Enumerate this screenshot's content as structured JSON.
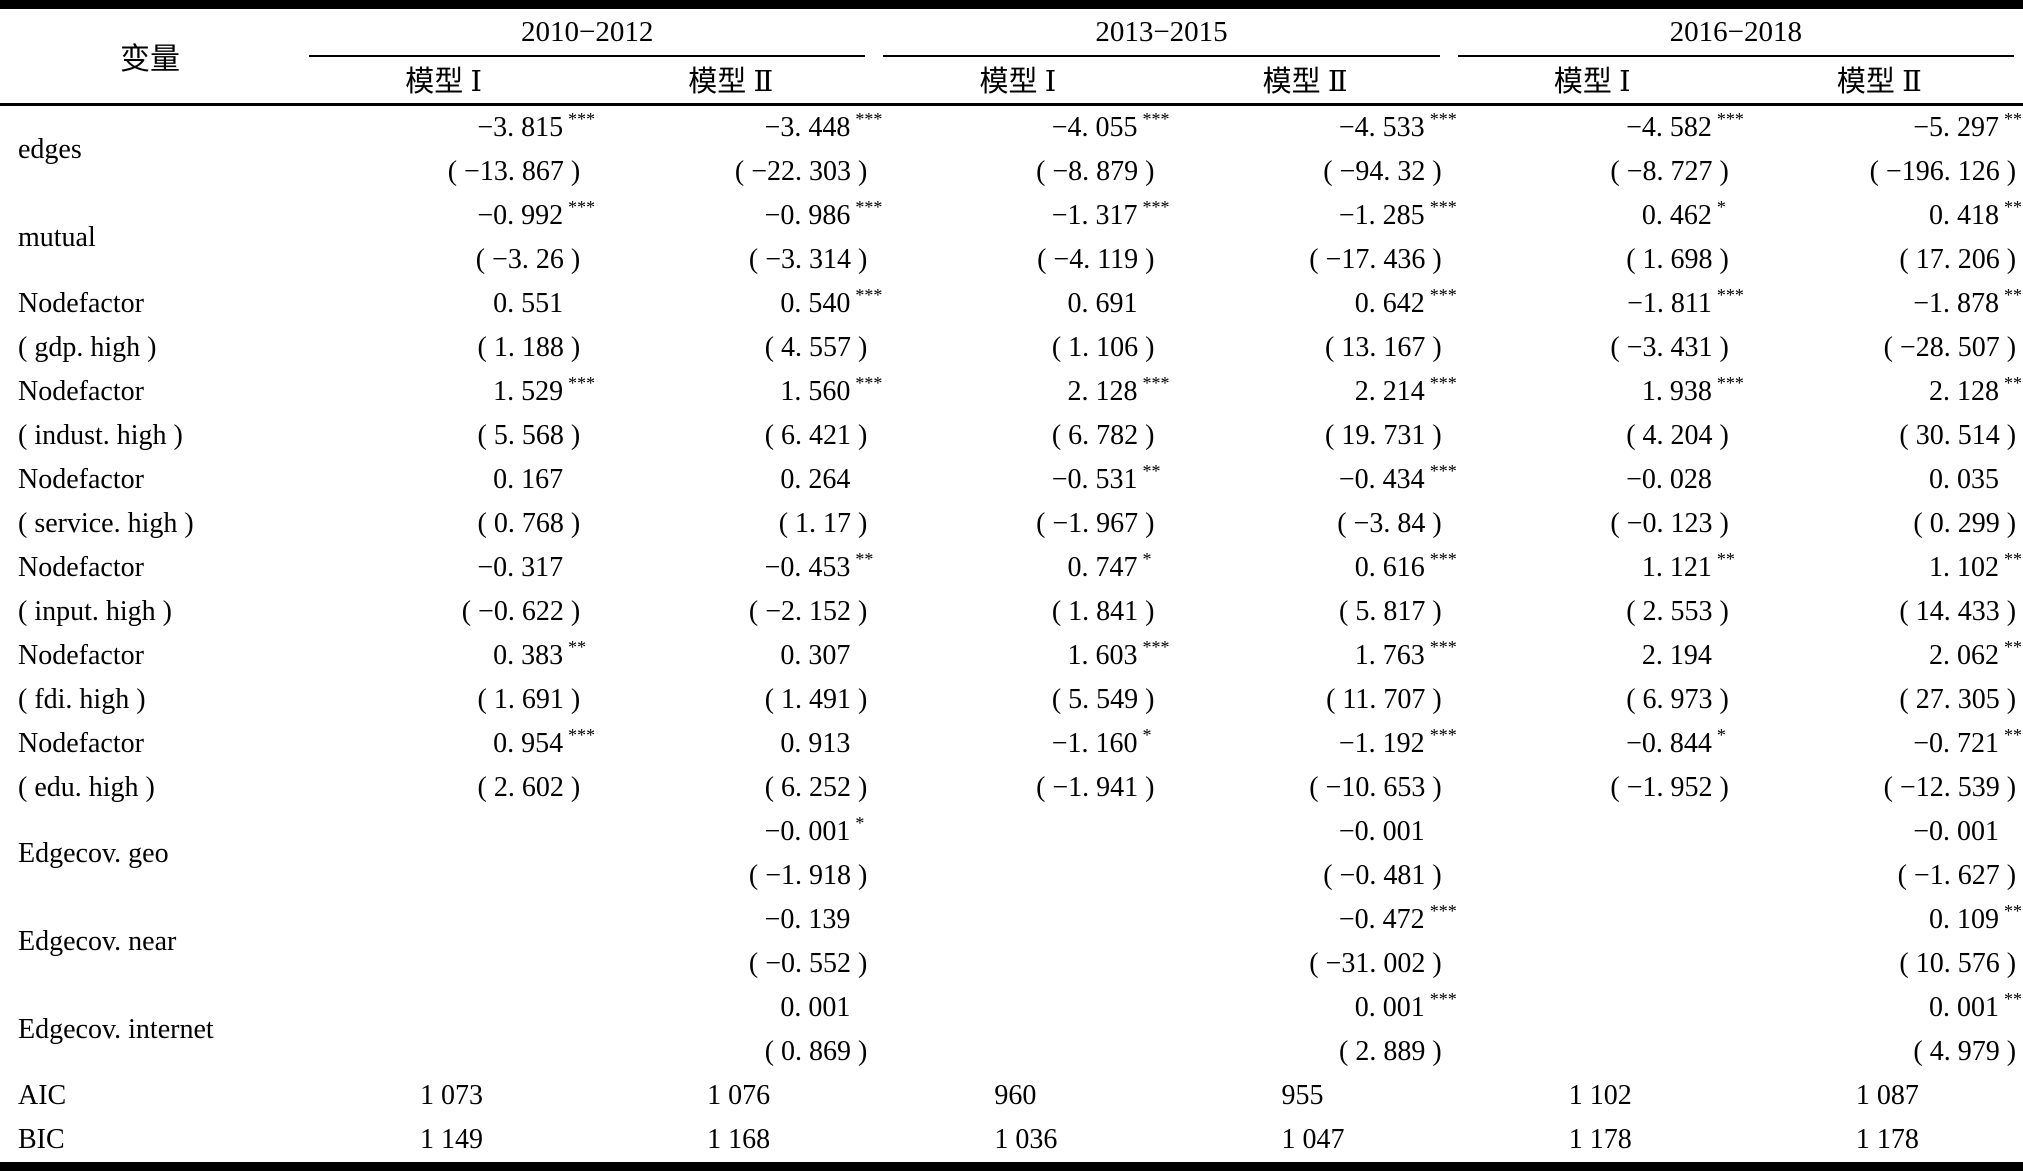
{
  "table": {
    "header": {
      "variable_label": "变量",
      "periods": [
        {
          "label": "2010−2012",
          "models": [
            "模型 Ⅰ",
            "模型 Ⅱ"
          ]
        },
        {
          "label": "2013−2015",
          "models": [
            "模型 Ⅰ",
            "模型 Ⅱ"
          ]
        },
        {
          "label": "2016−2018",
          "models": [
            "模型 Ⅰ",
            "模型 Ⅱ"
          ]
        }
      ]
    },
    "groups": [
      {
        "labels": [
          "edges"
        ],
        "cells": [
          {
            "v": "−3. 815",
            "s": "***",
            "t": "( −13. 867 )"
          },
          {
            "v": "−3. 448",
            "s": "***",
            "t": "( −22. 303 )"
          },
          {
            "v": "−4. 055",
            "s": "***",
            "t": "( −8. 879 )"
          },
          {
            "v": "−4. 533",
            "s": "***",
            "t": "( −94. 32 )"
          },
          {
            "v": "−4. 582",
            "s": "***",
            "t": "( −8. 727 )"
          },
          {
            "v": "−5. 297",
            "s": "***",
            "t": "( −196. 126 )"
          }
        ]
      },
      {
        "labels": [
          "mutual"
        ],
        "cells": [
          {
            "v": "−0. 992",
            "s": "***",
            "t": "( −3. 26 )"
          },
          {
            "v": "−0. 986",
            "s": "***",
            "t": "( −3. 314 )"
          },
          {
            "v": "−1. 317",
            "s": "***",
            "t": "( −4. 119 )"
          },
          {
            "v": "−1. 285",
            "s": "***",
            "t": "( −17. 436 )"
          },
          {
            "v": "0. 462",
            "s": "*",
            "t": "( 1. 698 )"
          },
          {
            "v": "0. 418",
            "s": "***",
            "t": "( 17. 206 )"
          }
        ]
      },
      {
        "labels": [
          "Nodefactor",
          "( gdp. high )"
        ],
        "cells": [
          {
            "v": "0. 551",
            "s": "",
            "t": "( 1. 188 )"
          },
          {
            "v": "0. 540",
            "s": "***",
            "t": "( 4. 557 )"
          },
          {
            "v": "0. 691",
            "s": "",
            "t": "( 1. 106 )"
          },
          {
            "v": "0. 642",
            "s": "***",
            "t": "( 13. 167 )"
          },
          {
            "v": "−1. 811",
            "s": "***",
            "t": "( −3. 431 )"
          },
          {
            "v": "−1. 878",
            "s": "***",
            "t": "( −28. 507 )"
          }
        ]
      },
      {
        "labels": [
          "Nodefactor",
          "( indust. high )"
        ],
        "cells": [
          {
            "v": "1. 529",
            "s": "***",
            "t": "( 5. 568 )"
          },
          {
            "v": "1. 560",
            "s": "***",
            "t": "( 6. 421 )"
          },
          {
            "v": "2. 128",
            "s": "***",
            "t": "( 6. 782 )"
          },
          {
            "v": "2. 214",
            "s": "***",
            "t": "( 19. 731 )"
          },
          {
            "v": "1. 938",
            "s": "***",
            "t": "( 4. 204 )"
          },
          {
            "v": "2. 128",
            "s": "***",
            "t": "( 30. 514 )"
          }
        ]
      },
      {
        "labels": [
          "Nodefactor",
          "( service. high )"
        ],
        "cells": [
          {
            "v": "0. 167",
            "s": "",
            "t": "( 0. 768 )"
          },
          {
            "v": "0. 264",
            "s": "",
            "t": "( 1. 17 )"
          },
          {
            "v": "−0. 531",
            "s": "**",
            "t": "( −1. 967 )"
          },
          {
            "v": "−0. 434",
            "s": "***",
            "t": "( −3. 84 )"
          },
          {
            "v": "−0. 028",
            "s": "",
            "t": "( −0. 123 )"
          },
          {
            "v": "0. 035",
            "s": "",
            "t": "( 0. 299 )"
          }
        ]
      },
      {
        "labels": [
          "Nodefactor",
          "( input. high )"
        ],
        "cells": [
          {
            "v": "−0. 317",
            "s": "",
            "t": "( −0. 622 )"
          },
          {
            "v": "−0. 453",
            "s": "**",
            "t": "( −2. 152 )"
          },
          {
            "v": "0. 747",
            "s": "*",
            "t": "( 1. 841 )"
          },
          {
            "v": "0. 616",
            "s": "***",
            "t": "( 5. 817 )"
          },
          {
            "v": "1. 121",
            "s": "**",
            "t": "( 2. 553 )"
          },
          {
            "v": "1. 102",
            "s": "***",
            "t": "( 14. 433 )"
          }
        ]
      },
      {
        "labels": [
          "Nodefactor",
          "( fdi. high )"
        ],
        "cells": [
          {
            "v": "0. 383",
            "s": "**",
            "t": "( 1. 691 )"
          },
          {
            "v": "0. 307",
            "s": "",
            "t": "( 1. 491 )"
          },
          {
            "v": "1. 603",
            "s": "***",
            "t": "( 5. 549 )"
          },
          {
            "v": "1. 763",
            "s": "***",
            "t": "( 11. 707 )"
          },
          {
            "v": "2. 194",
            "s": "",
            "t": "( 6. 973 )"
          },
          {
            "v": "2. 062",
            "s": "***",
            "t": "( 27. 305 )"
          }
        ]
      },
      {
        "labels": [
          "Nodefactor",
          "( edu. high )"
        ],
        "cells": [
          {
            "v": "0. 954",
            "s": "***",
            "t": "( 2. 602 )"
          },
          {
            "v": "0. 913",
            "s": "",
            "t": "( 6. 252 )"
          },
          {
            "v": "−1. 160",
            "s": "*",
            "t": "( −1. 941 )"
          },
          {
            "v": "−1. 192",
            "s": "***",
            "t": "( −10. 653 )"
          },
          {
            "v": "−0. 844",
            "s": "*",
            "t": "( −1. 952 )"
          },
          {
            "v": "−0. 721",
            "s": "***",
            "t": "( −12. 539 )"
          }
        ]
      },
      {
        "labels": [
          "Edgecov. geo"
        ],
        "cells": [
          null,
          {
            "v": "−0. 001",
            "s": "*",
            "t": "( −1. 918 )"
          },
          null,
          {
            "v": "−0. 001",
            "s": "",
            "t": "( −0. 481 )"
          },
          null,
          {
            "v": "−0. 001",
            "s": "",
            "t": "( −1. 627 )"
          }
        ]
      },
      {
        "labels": [
          "Edgecov. near"
        ],
        "cells": [
          null,
          {
            "v": "−0. 139",
            "s": "",
            "t": "( −0. 552 )"
          },
          null,
          {
            "v": "−0. 472",
            "s": "***",
            "t": "( −31. 002 )"
          },
          null,
          {
            "v": "0. 109",
            "s": "***",
            "t": "( 10. 576 )"
          }
        ]
      },
      {
        "labels": [
          "Edgecov. internet"
        ],
        "cells": [
          null,
          {
            "v": "0. 001",
            "s": "",
            "t": "( 0. 869 )"
          },
          null,
          {
            "v": "0. 001",
            "s": "***",
            "t": "( 2. 889 )"
          },
          null,
          {
            "v": "0. 001",
            "s": "***",
            "t": "( 4. 979 )"
          }
        ]
      }
    ],
    "stats": [
      {
        "label": "AIC",
        "values": [
          "1 073",
          "1 076",
          "960",
          "955",
          "1 102",
          "1 087"
        ]
      },
      {
        "label": "BIC",
        "values": [
          "1 149",
          "1 168",
          "1 036",
          "1 047",
          "1 178",
          "1 178"
        ]
      }
    ]
  }
}
